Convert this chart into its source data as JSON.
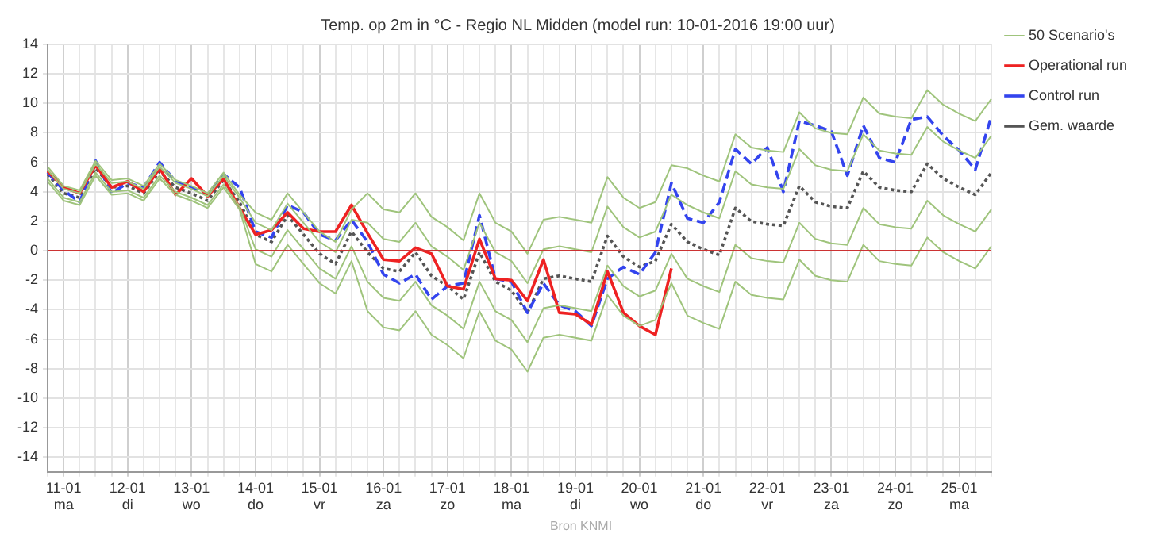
{
  "chart_data": {
    "type": "line",
    "title": "Temp. op 2m in °C - Regio NL Midden (model run: 10-01-2016 19:00 uur)",
    "categories": [
      null,
      "11-01\nma",
      null,
      null,
      null,
      "12-01\ndi",
      null,
      null,
      null,
      "13-01\nwo",
      null,
      null,
      null,
      "14-01\ndo",
      null,
      null,
      null,
      "15-01\nvr",
      null,
      null,
      null,
      "16-01\nza",
      null,
      null,
      null,
      "17-01\nzo",
      null,
      null,
      null,
      "18-01\nma",
      null,
      null,
      null,
      "19-01\ndi",
      null,
      null,
      null,
      "20-01\nwo",
      null,
      null,
      null,
      "21-01\ndo",
      null,
      null,
      null,
      "22-01\nvr",
      null,
      null,
      null,
      "23-01\nza",
      null,
      null,
      null,
      "24-01\nzo",
      null,
      null,
      null,
      "25-01\nma",
      null,
      null
    ],
    "series": [
      {
        "name": "50 Scenario's",
        "color": "#9fc47c",
        "line_style": "solid",
        "values": [
          5.7,
          4.4,
          4.1,
          6.1,
          4.8,
          4.9,
          4.4,
          5.9,
          4.8,
          4.4,
          3.9,
          5.3,
          3.8,
          2.6,
          2.1,
          3.9,
          2.6,
          1.3,
          0.6,
          2.8,
          3.9,
          2.8,
          2.6,
          3.9,
          2.3,
          1.6,
          0.7,
          3.9,
          1.9,
          1.3,
          -0.2,
          2.1,
          2.3,
          2.1,
          1.9,
          5.0,
          3.6,
          2.9,
          3.3,
          5.8,
          5.6,
          5.1,
          4.7,
          7.9,
          7.0,
          6.8,
          6.7,
          9.4,
          8.3,
          8.0,
          7.9,
          10.4,
          9.3,
          9.1,
          9.0,
          10.9,
          9.9,
          9.3,
          8.8,
          10.3
        ]
      },
      {
        "color": "#9fc47c",
        "line_style": "solid",
        "values": [
          4.7,
          3.4,
          3.1,
          5.1,
          3.8,
          3.9,
          3.4,
          4.9,
          3.8,
          3.4,
          2.9,
          4.3,
          2.8,
          -0.9,
          -1.4,
          0.4,
          -0.9,
          -2.2,
          -2.9,
          -0.7,
          -4.1,
          -5.2,
          -5.4,
          -4.1,
          -5.7,
          -6.4,
          -7.3,
          -4.1,
          -6.1,
          -6.7,
          -8.2,
          -5.9,
          -5.7,
          -5.9,
          -6.1,
          -3.0,
          -4.4,
          -5.1,
          -4.7,
          -2.2,
          -4.4,
          -4.9,
          -5.3,
          -2.1,
          -3.0,
          -3.2,
          -3.3,
          -0.6,
          -1.7,
          -2.0,
          -2.1,
          0.4,
          -0.7,
          -0.9,
          -1.0,
          0.9,
          -0.1,
          -0.7,
          -1.2,
          0.3
        ]
      },
      {
        "color": "#9fc47c",
        "line_style": "solid",
        "values": [
          5.5,
          4.2,
          3.9,
          5.9,
          4.6,
          4.7,
          4.2,
          5.7,
          4.6,
          4.2,
          3.7,
          5.1,
          3.6,
          1.9,
          1.4,
          3.2,
          1.9,
          0.6,
          -0.1,
          2.1,
          1.9,
          0.8,
          0.6,
          1.9,
          0.3,
          -0.4,
          -1.3,
          1.9,
          -0.1,
          -0.7,
          -2.2,
          0.1,
          0.3,
          0.1,
          -0.1,
          3.0,
          1.6,
          0.9,
          1.3,
          3.8,
          3.1,
          2.6,
          2.2,
          5.4,
          4.5,
          4.3,
          4.2,
          6.9,
          5.8,
          5.5,
          5.4,
          7.9,
          6.8,
          6.6,
          6.5,
          8.4,
          7.4,
          6.8,
          6.3,
          7.8
        ]
      },
      {
        "color": "#9fc47c",
        "line_style": "solid",
        "values": [
          4.9,
          3.6,
          3.3,
          5.3,
          4.0,
          4.1,
          3.6,
          5.1,
          4.0,
          3.6,
          3.1,
          4.5,
          3.0,
          0.1,
          -0.4,
          1.4,
          0.1,
          -1.2,
          -1.9,
          0.3,
          -2.1,
          -3.2,
          -3.4,
          -2.1,
          -3.7,
          -4.4,
          -5.3,
          -2.1,
          -4.1,
          -4.7,
          -6.2,
          -3.9,
          -3.7,
          -3.9,
          -4.1,
          -1.0,
          -2.4,
          -3.1,
          -2.7,
          -0.2,
          -1.9,
          -2.4,
          -2.8,
          0.4,
          -0.5,
          -0.7,
          -0.8,
          1.9,
          0.8,
          0.5,
          0.4,
          2.9,
          1.8,
          1.6,
          1.5,
          3.4,
          2.4,
          1.8,
          1.3,
          2.8
        ]
      },
      {
        "name": "Operational run",
        "color": "#ee2222",
        "line_style": "solid",
        "values": [
          5.4,
          4.3,
          3.9,
          5.8,
          4.3,
          4.7,
          4.0,
          5.6,
          3.8,
          4.9,
          3.7,
          4.9,
          2.9,
          1.1,
          1.4,
          2.6,
          1.5,
          1.3,
          1.3,
          3.1,
          1.2,
          -0.6,
          -0.7,
          0.2,
          -0.2,
          -2.4,
          -2.6,
          0.8,
          -1.9,
          -2.0,
          -3.4,
          -0.6,
          -4.2,
          -4.3,
          -5.0,
          -1.4,
          -4.2,
          -5.1,
          -5.7,
          -1.2,
          null,
          null,
          null,
          null,
          null,
          null,
          null,
          null,
          null,
          null,
          null,
          null,
          null,
          null,
          null,
          null,
          null,
          null,
          null,
          null
        ]
      },
      {
        "name": "Control run",
        "color": "#3344ee",
        "line_style": "dashed",
        "values": [
          5.3,
          4.1,
          3.3,
          6.1,
          3.9,
          4.6,
          4.3,
          6.0,
          4.7,
          4.3,
          3.8,
          5.2,
          4.3,
          1.3,
          0.9,
          3.1,
          2.6,
          1.1,
          0.7,
          2.1,
          0.6,
          -1.6,
          -2.2,
          -1.6,
          -3.3,
          -2.4,
          -2.2,
          2.4,
          -1.9,
          -2.1,
          -4.2,
          -2.2,
          -3.7,
          -4.1,
          -5.1,
          -1.9,
          -1.1,
          -1.6,
          -0.1,
          4.6,
          2.2,
          1.9,
          3.3,
          6.9,
          5.9,
          7.0,
          4.0,
          8.8,
          8.5,
          8.1,
          5.1,
          8.5,
          6.3,
          6.0,
          8.9,
          9.1,
          7.8,
          6.8,
          5.5,
          9.1
        ]
      },
      {
        "name": "Gem. waarde",
        "color": "#555555",
        "line_style": "dotted",
        "values": [
          5.2,
          3.9,
          3.6,
          5.6,
          4.3,
          4.4,
          3.9,
          5.4,
          4.3,
          3.9,
          3.4,
          4.8,
          3.3,
          1.1,
          0.6,
          2.4,
          1.1,
          -0.2,
          -0.9,
          1.3,
          -0.1,
          -1.2,
          -1.4,
          -0.1,
          -1.7,
          -2.4,
          -3.3,
          -0.1,
          -2.1,
          -2.7,
          -4.2,
          -1.9,
          -1.7,
          -1.9,
          -2.1,
          1.0,
          -0.4,
          -1.1,
          -0.7,
          1.8,
          0.6,
          0.1,
          -0.3,
          2.9,
          2.0,
          1.8,
          1.7,
          4.4,
          3.3,
          3.0,
          2.9,
          5.4,
          4.3,
          4.1,
          4.0,
          5.9,
          4.9,
          4.3,
          3.8,
          5.3
        ]
      }
    ],
    "ylim": [
      -15,
      14
    ],
    "yticks": [
      -14,
      -12,
      -10,
      -8,
      -6,
      -4,
      -2,
      0,
      2,
      4,
      6,
      8,
      10,
      12,
      14
    ],
    "ref_lines": [
      {
        "axis": "y",
        "value": 0,
        "color": "#cc3333"
      }
    ],
    "annotations": [
      "Bron KNMI"
    ],
    "grid": true,
    "legend": "top right",
    "marker": "none"
  }
}
